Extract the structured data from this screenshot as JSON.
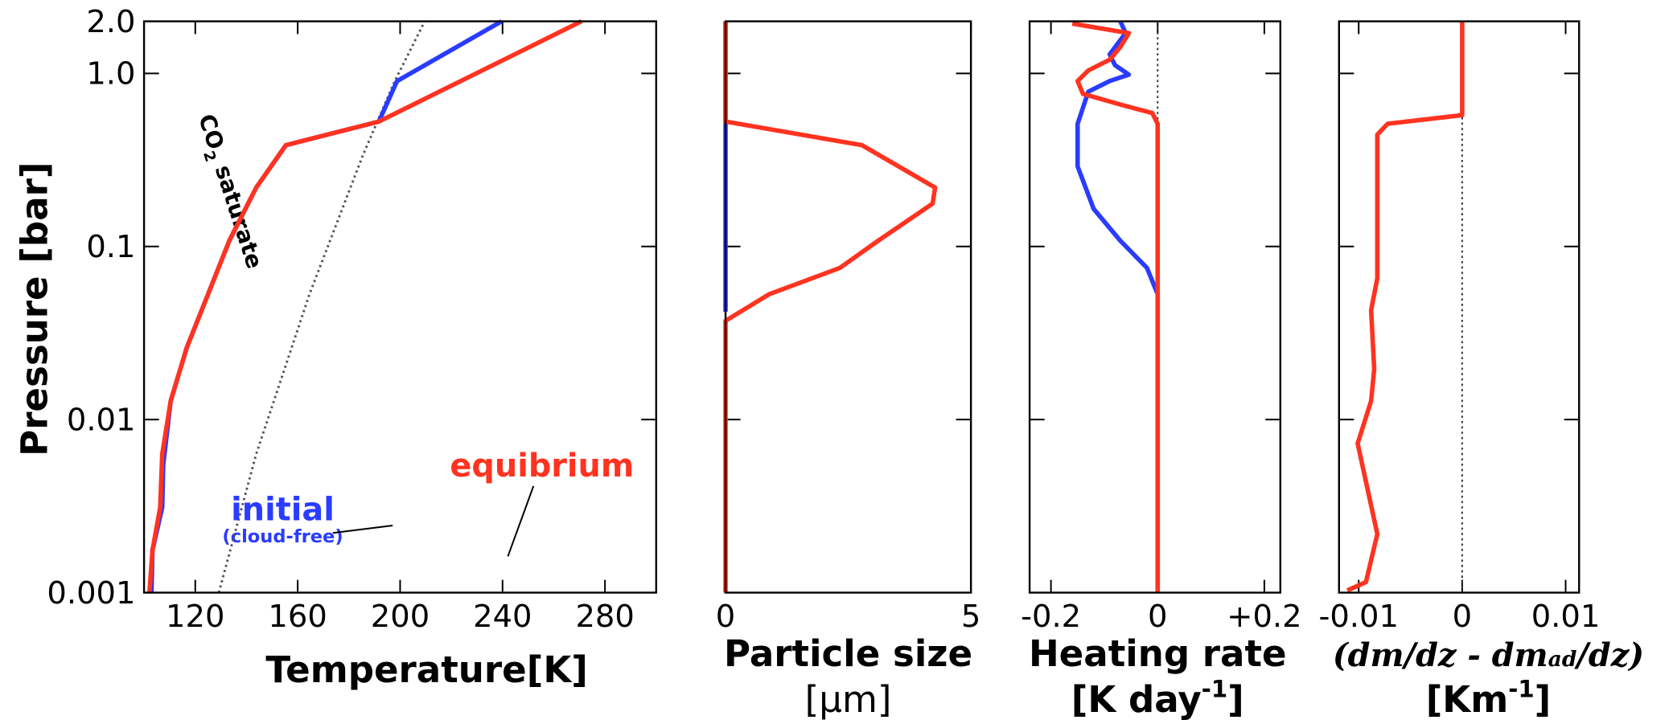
{
  "chart_data": [
    {
      "type": "line",
      "ylabel": "Pressure [bar]",
      "xlabel": "Temperature[K]",
      "ylog": true,
      "ylim": [
        0.001,
        2.0
      ],
      "yticks": [
        0.001,
        0.01,
        0.1,
        {
          "value": 1,
          "label": "1.0"
        },
        {
          "value": 2,
          "label": "2.0"
        }
      ],
      "xlim": [
        100,
        300
      ],
      "xticks": [
        120,
        160,
        200,
        240,
        280
      ],
      "series": [
        {
          "color": "#555555",
          "style": "dotted",
          "x": [
            129.2,
            143.8,
            164.6,
            185.4,
            197.9,
            209.6
          ],
          "y": [
            0.001,
            0.00632,
            0.053,
            0.335,
            0.903,
            2.0
          ]
        },
        {
          "name": "initial",
          "color": "#2a3cff",
          "x": [
            102.9,
            103.3,
            107.1,
            107.5,
            110.4,
            116.7,
            125,
            133.3,
            143.8,
            155.4,
            191.7,
            198.8,
            239.6
          ],
          "y": [
            0.001,
            0.00176,
            0.00311,
            0.00548,
            0.0128,
            0.0261,
            0.053,
            0.108,
            0.219,
            0.385,
            0.527,
            0.903,
            2.0
          ]
        },
        {
          "name": "equibrium",
          "color": "#ff3320",
          "x": [
            102.1,
            103.3,
            106.3,
            107.1,
            110.4,
            116.7,
            125,
            133.3,
            143.8,
            155.4,
            191.7,
            270.8
          ],
          "y": [
            0.001,
            0.00176,
            0.00311,
            0.00632,
            0.0128,
            0.0261,
            0.053,
            0.108,
            0.219,
            0.385,
            0.527,
            2.0
          ]
        }
      ],
      "annotations": [
        {
          "text": "(cloud-free)",
          "color": "#2a3cff"
        },
        {
          "text": "CO",
          "sub": "2",
          "rest": " saturate"
        }
      ]
    },
    {
      "type": "line",
      "xlabel": "Particle size",
      "xunit": "[μm]",
      "ylog": true,
      "ylim": [
        0.001,
        2.0
      ],
      "xlim": [
        0,
        5
      ],
      "xticks": [
        0,
        5
      ],
      "series": [
        {
          "color": "#2a3cff",
          "x": [
            0,
            0
          ],
          "y": [
            0.042,
            2.0
          ]
        },
        {
          "color": "#ff3320",
          "x": [
            0,
            0,
            0.89,
            2.33,
            3.11,
            4.22,
            4.27,
            2.78,
            0,
            0
          ],
          "y": [
            0.001,
            0.0372,
            0.053,
            0.0752,
            0.108,
            0.177,
            0.219,
            0.385,
            0.527,
            2.0
          ]
        }
      ]
    },
    {
      "type": "line",
      "xlabel": "Heating rate",
      "xunit": {
        "base": "[K day",
        "sup": "-1",
        "end": "]"
      },
      "ylog": true,
      "ylim": [
        0.001,
        2.0
      ],
      "xlim": [
        -0.24,
        0.23
      ],
      "xticks": [
        -0.2,
        0,
        {
          "value": 0.2,
          "label": "+0.2"
        }
      ],
      "zero_line": true,
      "series": [
        {
          "color": "#2a3cff",
          "x": [
            0,
            0,
            -0.02,
            -0.07,
            -0.12,
            -0.15,
            -0.15,
            -0.13,
            -0.09,
            -0.054,
            -0.08,
            -0.09,
            -0.06,
            -0.07
          ],
          "y": [
            0.001,
            0.053,
            0.0752,
            0.108,
            0.165,
            0.29,
            0.512,
            0.784,
            0.903,
            0.984,
            1.117,
            1.288,
            1.71,
            2.0
          ]
        },
        {
          "color": "#ff3320",
          "x": [
            0,
            0,
            -0.01,
            -0.07,
            -0.14,
            -0.15,
            -0.13,
            -0.09,
            -0.07,
            -0.054,
            -0.16
          ],
          "y": [
            0.001,
            0.512,
            0.59,
            0.661,
            0.762,
            0.903,
            1.04,
            1.2,
            1.42,
            1.71,
            1.94
          ]
        }
      ]
    },
    {
      "type": "line",
      "xlabel": {
        "a": "(dm/dz - dm",
        "sub": "ad",
        "b": "/dz)"
      },
      "xunit": {
        "base": "[Km",
        "sup": "-1",
        "end": "]"
      },
      "ylog": true,
      "ylim": [
        0.001,
        2.0
      ],
      "xlim": [
        -0.0119,
        0.0113
      ],
      "xticks": [
        -0.01,
        0,
        0.01
      ],
      "zero_line": true,
      "series": [
        {
          "color": "#ff3320",
          "x": [
            -0.0111,
            -0.0093,
            -0.0082,
            -0.0101,
            -0.0088,
            -0.0085,
            -0.0088,
            -0.0082,
            -0.0082,
            -0.0072,
            0,
            0
          ],
          "y": [
            0.00103,
            0.00115,
            0.00218,
            0.00727,
            0.0128,
            0.0196,
            0.0428,
            0.0655,
            0.443,
            0.512,
            0.574,
            2.0
          ]
        }
      ]
    }
  ]
}
